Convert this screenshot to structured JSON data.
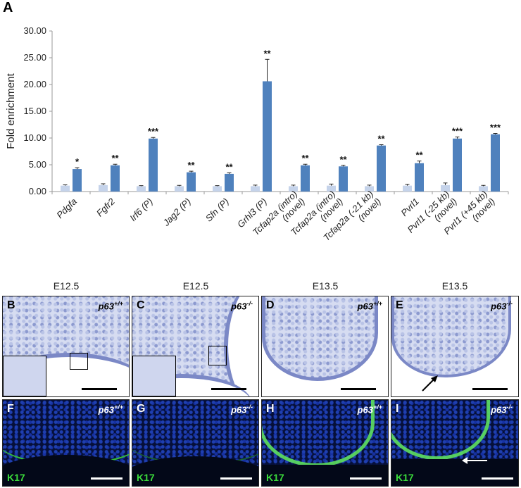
{
  "panel_label": "A",
  "chart_data": {
    "type": "bar",
    "ylabel": "Fold enrichment",
    "ylim": [
      0,
      30
    ],
    "yticks": [
      "0.00",
      "5.00",
      "10.00",
      "15.00",
      "20.00",
      "25.00",
      "30.00"
    ],
    "categories": [
      {
        "lines": [
          "Pdgfa"
        ]
      },
      {
        "lines": [
          "Fgfr2"
        ]
      },
      {
        "lines": [
          "Irf6 (P)"
        ]
      },
      {
        "lines": [
          "Jag2 (P)"
        ]
      },
      {
        "lines": [
          "Sfn (P)"
        ]
      },
      {
        "lines": [
          "Grhl3 (P)"
        ]
      },
      {
        "lines": [
          "Tcfap2a (intro)",
          "(novel)"
        ]
      },
      {
        "lines": [
          "Tcfap2a (intro)",
          "(novel)"
        ]
      },
      {
        "lines": [
          "Tcfap2a (-21 kb)",
          "(novel)"
        ]
      },
      {
        "lines": [
          "Pvrl1"
        ]
      },
      {
        "lines": [
          "Pvrl1 (-25 kb)",
          "(novel)"
        ]
      },
      {
        "lines": [
          "Pvrl1 (+45 kb)",
          "(novel)"
        ]
      }
    ],
    "series": [
      {
        "values": [
          1.1,
          1.2,
          1.0,
          1.0,
          1.0,
          1.0,
          1.0,
          1.1,
          1.0,
          1.1,
          1.2,
          1.0
        ],
        "errors": [
          0.15,
          0.25,
          0.1,
          0.15,
          0.1,
          0.2,
          0.2,
          0.3,
          0.2,
          0.25,
          0.4,
          0.15
        ],
        "color": "#c5d3ea"
      },
      {
        "values": [
          4.2,
          4.9,
          9.9,
          3.6,
          3.3,
          20.6,
          4.9,
          4.7,
          8.6,
          5.3,
          9.9,
          10.7
        ],
        "errors": [
          0.25,
          0.2,
          0.2,
          0.2,
          0.2,
          4.1,
          0.2,
          0.2,
          0.15,
          0.4,
          0.3,
          0.15
        ],
        "color": "#4f81bd"
      }
    ],
    "significance": [
      "*",
      "**",
      "***",
      "**",
      "**",
      "**",
      "**",
      "**",
      "**",
      "**",
      "***",
      "***"
    ]
  },
  "micrographs": {
    "stages": [
      "E12.5",
      "E12.5",
      "E13.5",
      "E13.5"
    ],
    "he_panels": [
      {
        "label": "B",
        "genotype": "p63+/+"
      },
      {
        "label": "C",
        "genotype": "p63-/-"
      },
      {
        "label": "D",
        "genotype": "p63+/+"
      },
      {
        "label": "E",
        "genotype": "p63-/-"
      }
    ],
    "fluo_panels": [
      {
        "label": "F",
        "genotype": "p63+/+",
        "stain": "K17"
      },
      {
        "label": "G",
        "genotype": "p63-/-",
        "stain": "K17"
      },
      {
        "label": "H",
        "genotype": "p63+/+",
        "stain": "K17"
      },
      {
        "label": "I",
        "genotype": "p63-/-",
        "stain": "K17"
      }
    ]
  },
  "colors": {
    "control_bar": "#c5d3ea",
    "enriched_bar": "#4f81bd",
    "k17_green": "#3bdc3b"
  }
}
